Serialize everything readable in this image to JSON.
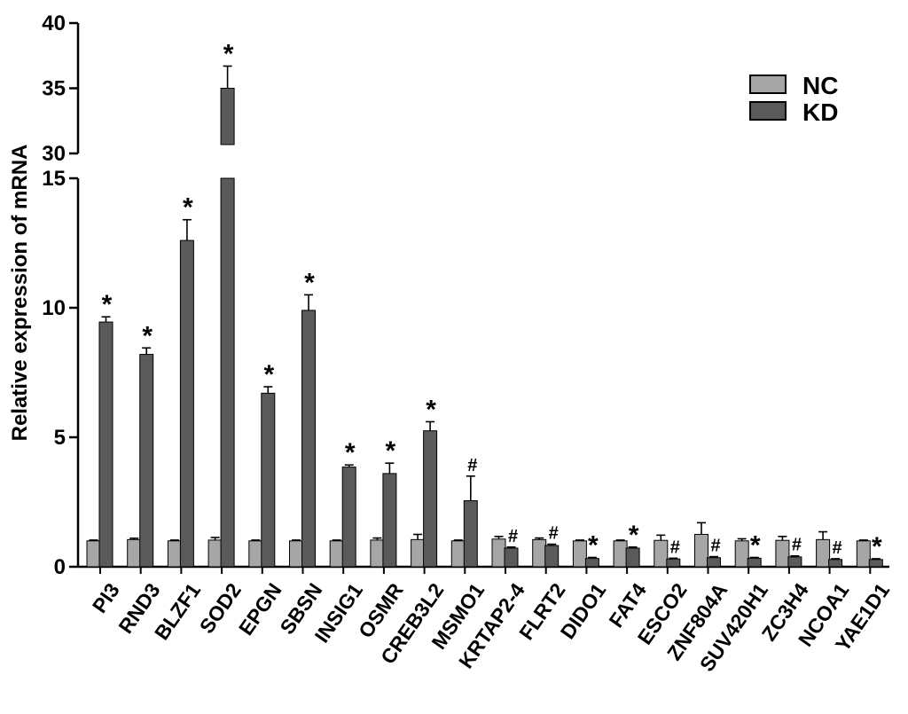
{
  "chart_data": {
    "type": "bar",
    "ylabel": "Relative expression of mRNA",
    "categories": [
      "PI3",
      "RND3",
      "BLZF1",
      "SOD2",
      "EPGN",
      "SBSN",
      "INSIG1",
      "OSMR",
      "CREB3L2",
      "MSMO1",
      "KRTAP2-4",
      "FLRT2",
      "DIDO1",
      "FAT4",
      "ESCO2",
      "ZNF804A",
      "SUV420H1",
      "ZC3H4",
      "NCOA1",
      "YAE1D1"
    ],
    "series": [
      {
        "name": "NC",
        "color": "#a6a6a6",
        "values": [
          1.0,
          1.05,
          1.0,
          1.03,
          1.0,
          1.0,
          1.0,
          1.03,
          1.05,
          1.0,
          1.07,
          1.05,
          1.0,
          1.0,
          1.02,
          1.25,
          1.0,
          1.02,
          1.05,
          1.0
        ],
        "errors": [
          0.03,
          0.05,
          0.03,
          0.1,
          0.03,
          0.03,
          0.03,
          0.08,
          0.2,
          0.03,
          0.1,
          0.06,
          0.03,
          0.03,
          0.2,
          0.45,
          0.08,
          0.15,
          0.3,
          0.03
        ]
      },
      {
        "name": "KD",
        "color": "#5a5a5a",
        "values": [
          9.45,
          8.2,
          12.6,
          35.0,
          6.7,
          9.9,
          3.85,
          3.6,
          5.25,
          2.55,
          0.72,
          0.82,
          0.32,
          0.72,
          0.3,
          0.35,
          0.33,
          0.38,
          0.28,
          0.28
        ],
        "errors": [
          0.2,
          0.25,
          0.8,
          1.7,
          0.25,
          0.6,
          0.08,
          0.4,
          0.35,
          0.95,
          0.04,
          0.05,
          0.04,
          0.04,
          0.03,
          0.04,
          0.03,
          0.04,
          0.03,
          0.03
        ]
      }
    ],
    "significance": [
      "*",
      "*",
      "*",
      "*",
      "*",
      "*",
      "*",
      "*",
      "*",
      "#",
      "#",
      "#",
      "*",
      "*",
      "#",
      "#",
      "*",
      "#",
      "#",
      "*"
    ],
    "y_segments": [
      {
        "range": [
          0,
          15
        ],
        "ticks": [
          0,
          5,
          10,
          15
        ],
        "tick_labels": [
          "0",
          "5",
          "10",
          "15"
        ]
      },
      {
        "range": [
          30,
          40
        ],
        "ticks": [
          30,
          35,
          40
        ],
        "tick_labels": [
          "30",
          "35",
          "40"
        ]
      }
    ],
    "axis_break": [
      15,
      30
    ],
    "grid": false,
    "legend_position": "top-right"
  }
}
